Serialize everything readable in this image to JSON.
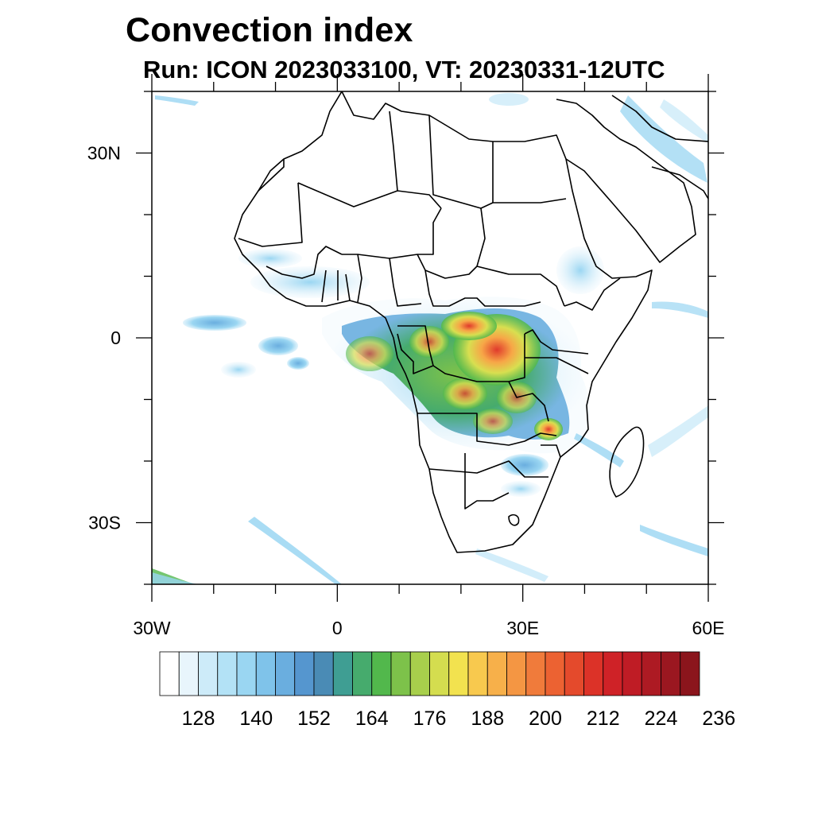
{
  "title": "Convection index",
  "subtitle": "Run: ICON 2023033100,  VT: 20230331-12UTC",
  "axes": {
    "x_ticks": [
      {
        "lon": -30,
        "label": "30W"
      },
      {
        "lon": 0,
        "label": "0"
      },
      {
        "lon": 30,
        "label": "30E"
      },
      {
        "lon": 60,
        "label": "60E"
      }
    ],
    "y_ticks": [
      {
        "lat": 30,
        "label": "30N"
      },
      {
        "lat": 0,
        "label": "0"
      },
      {
        "lat": -30,
        "label": "30S"
      }
    ],
    "lon_range": [
      -30,
      60
    ],
    "lat_range": [
      -40,
      40
    ]
  },
  "colorbar": {
    "labels": [
      "128",
      "140",
      "152",
      "164",
      "176",
      "188",
      "200",
      "212",
      "224",
      "236"
    ],
    "colors": [
      "#ffffff",
      "#e8f5fc",
      "#cdebf9",
      "#b3e2f6",
      "#9ad6f2",
      "#7fc3ea",
      "#6aaedf",
      "#5596cf",
      "#4a8bb5",
      "#3f9e93",
      "#46ab6d",
      "#52b84c",
      "#7dc24a",
      "#a8cf4c",
      "#d4dd4f",
      "#f2e24f",
      "#f8c94e",
      "#f7b04a",
      "#f49643",
      "#f07b3b",
      "#ec6232",
      "#e44a2c",
      "#dc3228",
      "#cf2227",
      "#bf1c25",
      "#ad1a23",
      "#9b1720",
      "#8b151c"
    ]
  }
}
